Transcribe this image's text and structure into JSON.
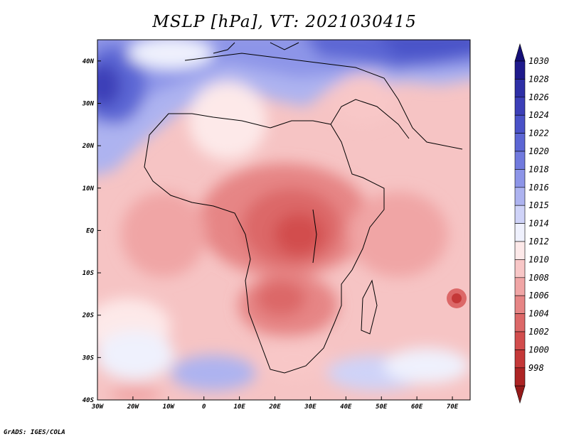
{
  "title": "MSLP [hPa], VT: 2021030415",
  "credit": "GrADS: IGES/COLA",
  "map": {
    "lon_range": [
      -30,
      75
    ],
    "lat_range": [
      -40,
      45
    ],
    "lon_ticks": [
      {
        "value": -30,
        "label": "30W"
      },
      {
        "value": -20,
        "label": "20W"
      },
      {
        "value": -10,
        "label": "10W"
      },
      {
        "value": 0,
        "label": "0"
      },
      {
        "value": 10,
        "label": "10E"
      },
      {
        "value": 20,
        "label": "20E"
      },
      {
        "value": 30,
        "label": "30E"
      },
      {
        "value": 40,
        "label": "40E"
      },
      {
        "value": 50,
        "label": "50E"
      },
      {
        "value": 60,
        "label": "60E"
      },
      {
        "value": 70,
        "label": "70E"
      }
    ],
    "lat_ticks": [
      {
        "value": 40,
        "label": "40N"
      },
      {
        "value": 30,
        "label": "30N"
      },
      {
        "value": 20,
        "label": "20N"
      },
      {
        "value": 10,
        "label": "10N"
      },
      {
        "value": 0,
        "label": "EQ"
      },
      {
        "value": -10,
        "label": "10S"
      },
      {
        "value": -20,
        "label": "20S"
      },
      {
        "value": -30,
        "label": "30S"
      },
      {
        "value": -40,
        "label": "40S"
      }
    ]
  },
  "colorbar": {
    "unit": "hPa",
    "levels": [
      {
        "label": "1030",
        "color": "#1f1a8c"
      },
      {
        "label": "1028",
        "color": "#2e2fa6"
      },
      {
        "label": "1026",
        "color": "#3c3fb8"
      },
      {
        "label": "1024",
        "color": "#4a52c8"
      },
      {
        "label": "1022",
        "color": "#5c66d4"
      },
      {
        "label": "1020",
        "color": "#717ade"
      },
      {
        "label": "1018",
        "color": "#8d95e8"
      },
      {
        "label": "1016",
        "color": "#adb3f0"
      },
      {
        "label": "1015",
        "color": "#cfd3f8"
      },
      {
        "label": "1014",
        "color": "#eff1fd"
      },
      {
        "label": "1012",
        "color": "#fde9e9"
      },
      {
        "label": "1010",
        "color": "#f8c7c7"
      },
      {
        "label": "1008",
        "color": "#f0a5a5"
      },
      {
        "label": "1006",
        "color": "#e68585"
      },
      {
        "label": "1004",
        "color": "#dc6868"
      },
      {
        "label": "1002",
        "color": "#d24d4d"
      },
      {
        "label": "1000",
        "color": "#c43838"
      },
      {
        "label": "998",
        "color": "#ad2424"
      }
    ],
    "top_arrow_color": "#150f78",
    "bottom_arrow_color": "#951a1a"
  }
}
